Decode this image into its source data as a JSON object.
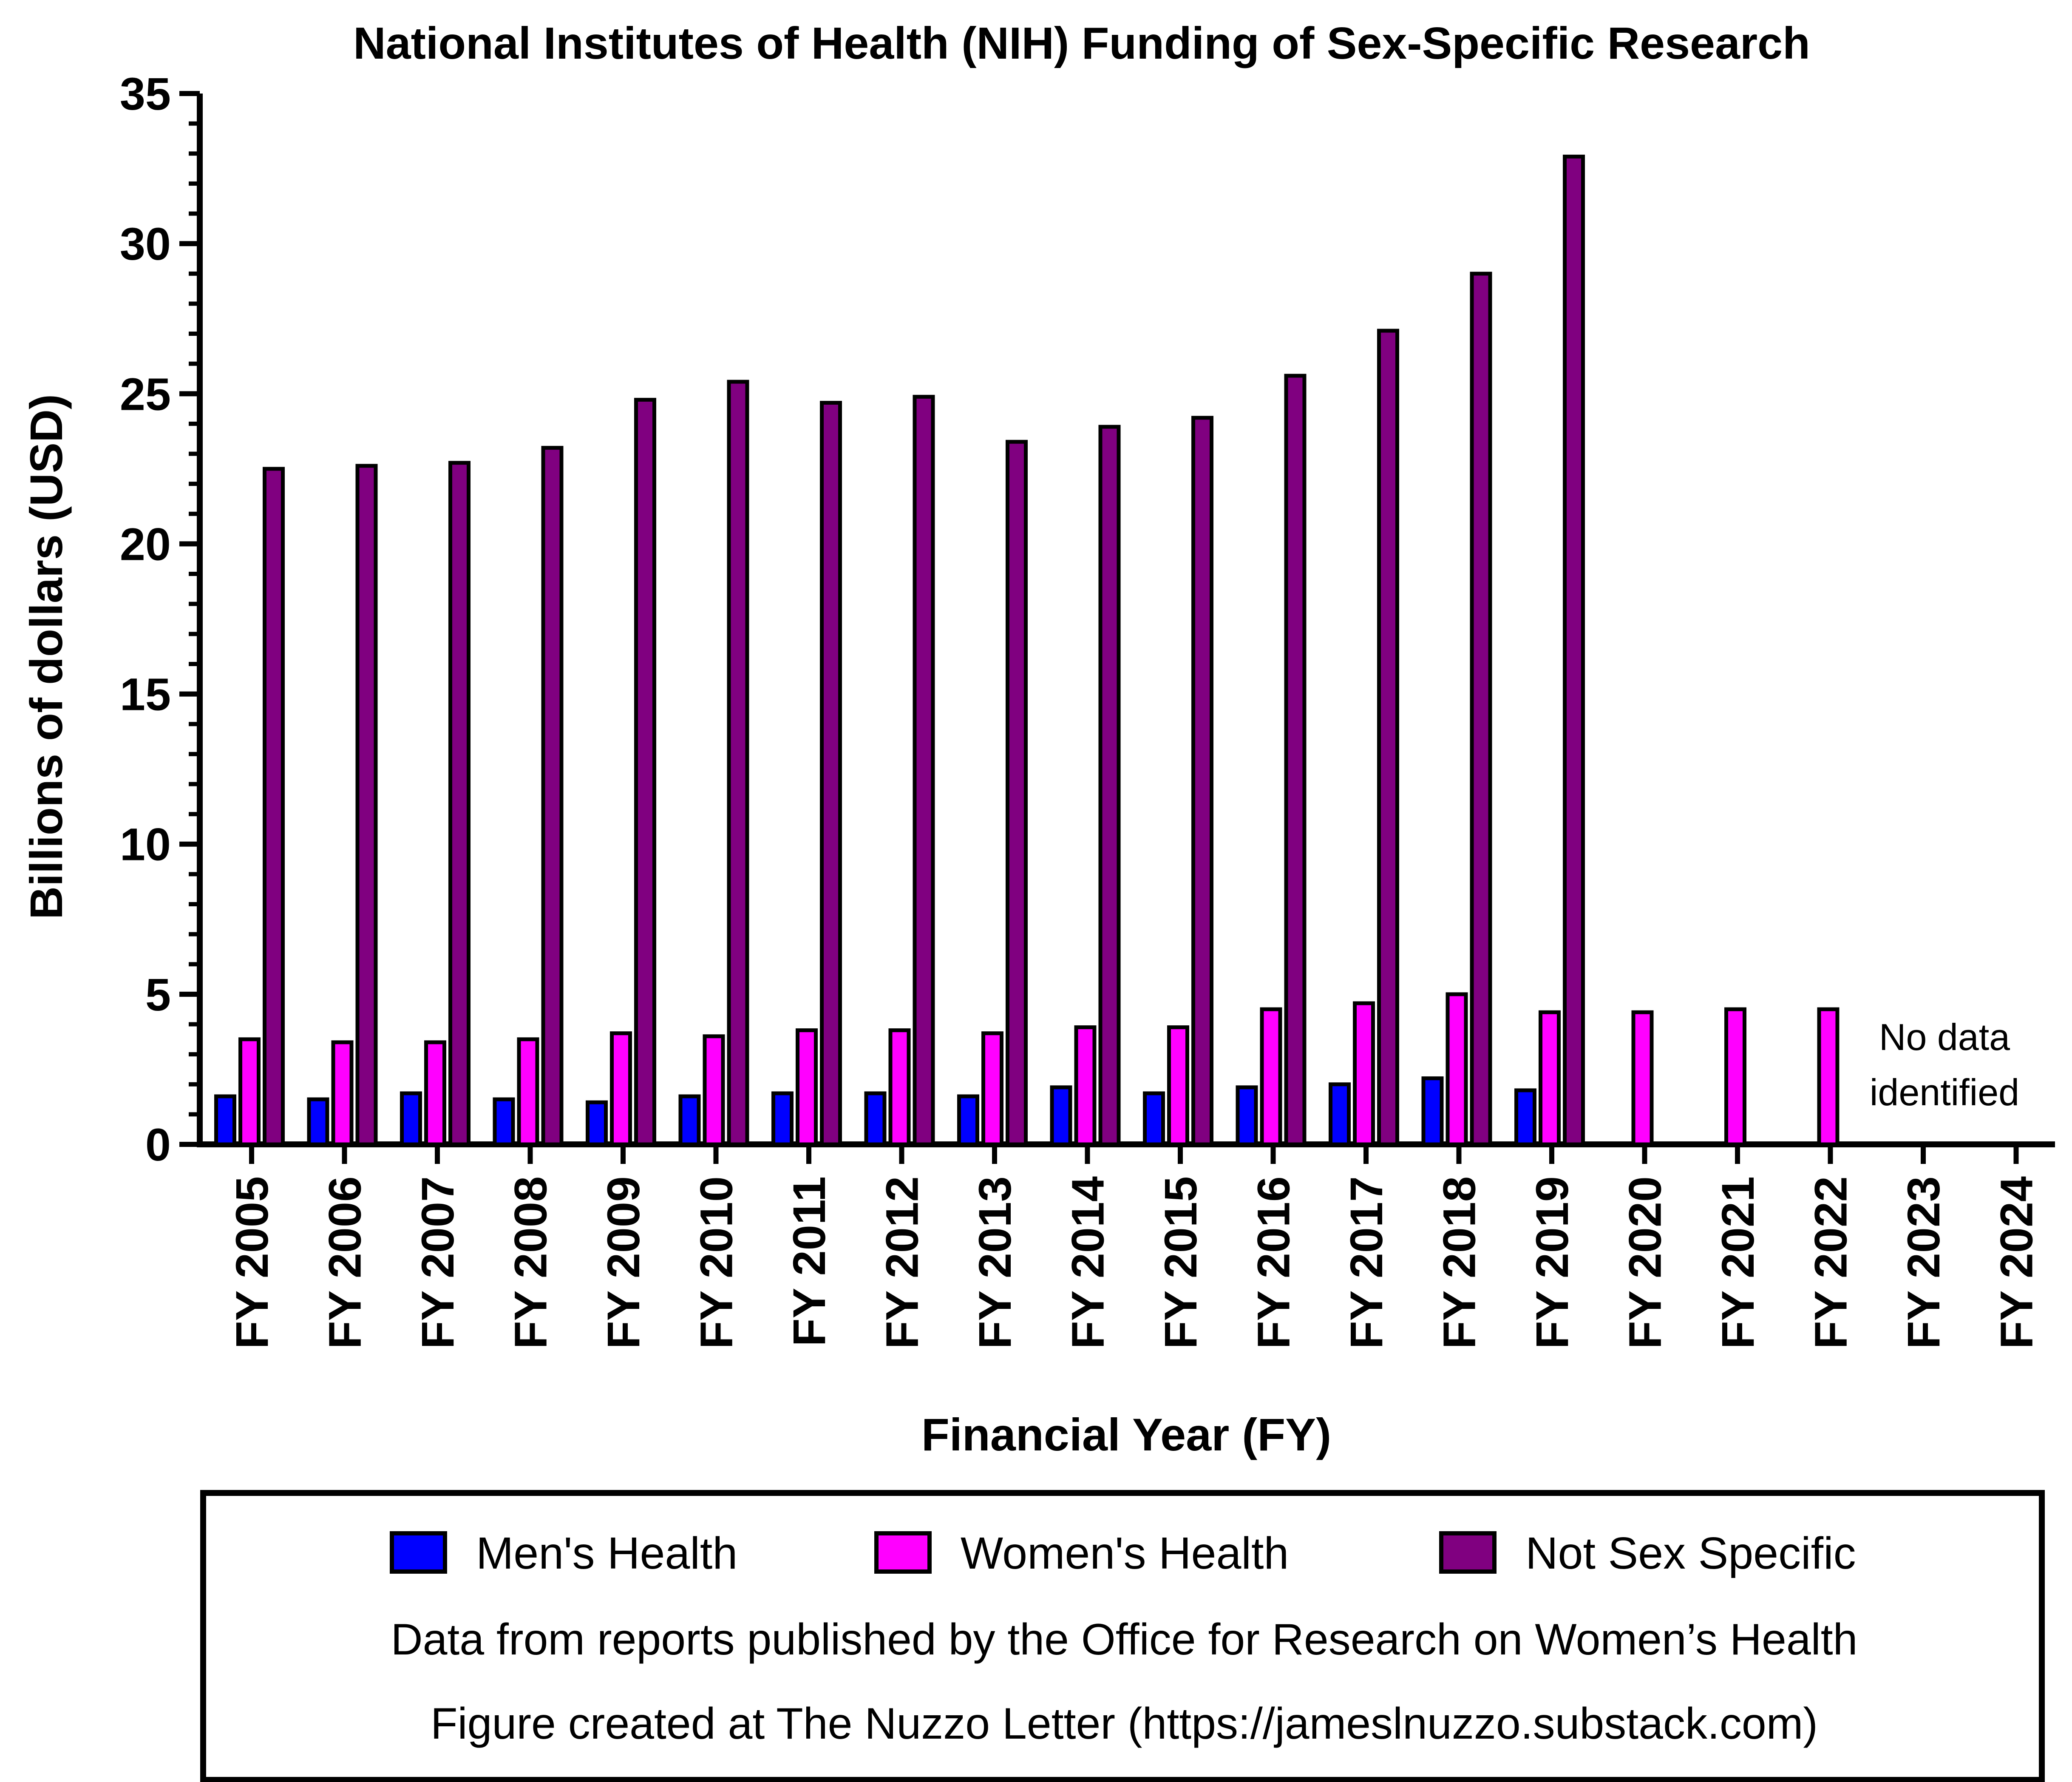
{
  "chart_data": {
    "type": "bar",
    "title": "National Institutes of Health (NIH) Funding of Sex-Specific Research",
    "xlabel": "Financial Year (FY)",
    "ylabel": "Billions of dollars (USD)",
    "ylim": [
      0,
      35
    ],
    "yticks": [
      "0",
      "5",
      "10",
      "15",
      "20",
      "25",
      "30",
      "35"
    ],
    "categories": [
      "FY 2005",
      "FY 2006",
      "FY 2007",
      "FY 2008",
      "FY 2009",
      "FY 2010",
      "FY 2011",
      "FY 2012",
      "FY 2013",
      "FY 2014",
      "FY 2015",
      "FY 2016",
      "FY 2017",
      "FY 2018",
      "FY 2019",
      "FY 2020",
      "FY 2021",
      "FY 2022",
      "FY 2023",
      "FY 2024"
    ],
    "series": [
      {
        "name": "Men's Health",
        "color": "#0000FF",
        "values": [
          1.6,
          1.5,
          1.7,
          1.5,
          1.4,
          1.6,
          1.7,
          1.7,
          1.6,
          1.9,
          1.7,
          1.9,
          2.0,
          2.2,
          1.8,
          null,
          null,
          null,
          null,
          null
        ]
      },
      {
        "name": "Women's Health",
        "color": "#FF00FF",
        "values": [
          3.5,
          3.4,
          3.4,
          3.5,
          3.7,
          3.6,
          3.8,
          3.8,
          3.7,
          3.9,
          3.9,
          4.5,
          4.7,
          5.0,
          4.4,
          4.4,
          4.5,
          4.5,
          null,
          null
        ]
      },
      {
        "name": "Not Sex Specific",
        "color": "#800080",
        "values": [
          22.5,
          22.6,
          22.7,
          23.2,
          24.8,
          25.4,
          24.7,
          24.9,
          23.4,
          23.9,
          24.2,
          25.6,
          27.1,
          29.0,
          32.9,
          null,
          null,
          null,
          null,
          null
        ]
      }
    ],
    "annotation": [
      "No data",
      "identified"
    ],
    "legend_position": "bottom",
    "notes": [
      "Data from reports published by the Office for Research on Women’s Health",
      "Figure created at The Nuzzo Letter (https://jameslnuzzo.substack.com)"
    ],
    "grid": false
  }
}
